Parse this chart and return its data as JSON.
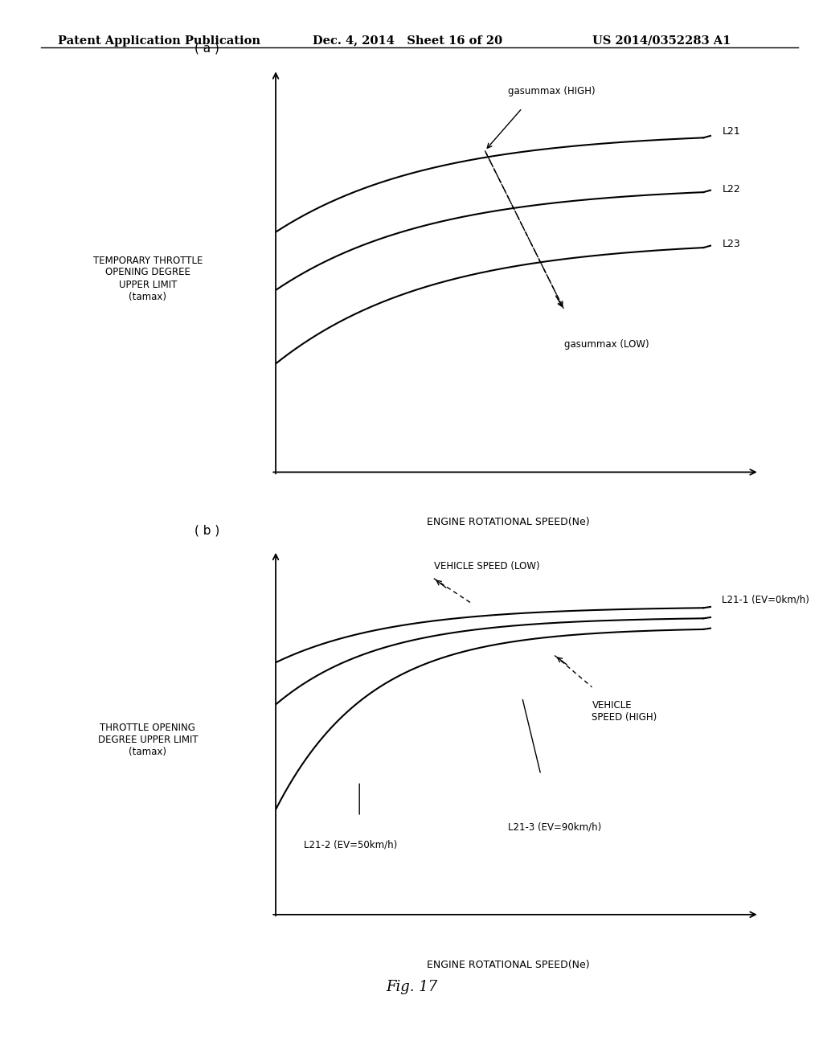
{
  "header_left": "Patent Application Publication",
  "header_mid": "Dec. 4, 2014   Sheet 16 of 20",
  "header_right": "US 2014/0352283 A1",
  "fig_label": "Fig. 17",
  "panel_a_label": "( a )",
  "panel_b_label": "( b )",
  "panel_a_ylabel": "TEMPORARY THROTTLE\nOPENING DEGREE\nUPPER LIMIT\n(tamax)",
  "panel_b_ylabel": "THROTTLE OPENING\nDEGREE UPPER LIMIT\n(tamax)",
  "xlabel": "ENGINE ROTATIONAL SPEED(Ne)",
  "bg_color": "#ffffff",
  "line_color": "#000000",
  "font_size_header": 11,
  "font_size_label": 9,
  "font_size_fig": 13
}
